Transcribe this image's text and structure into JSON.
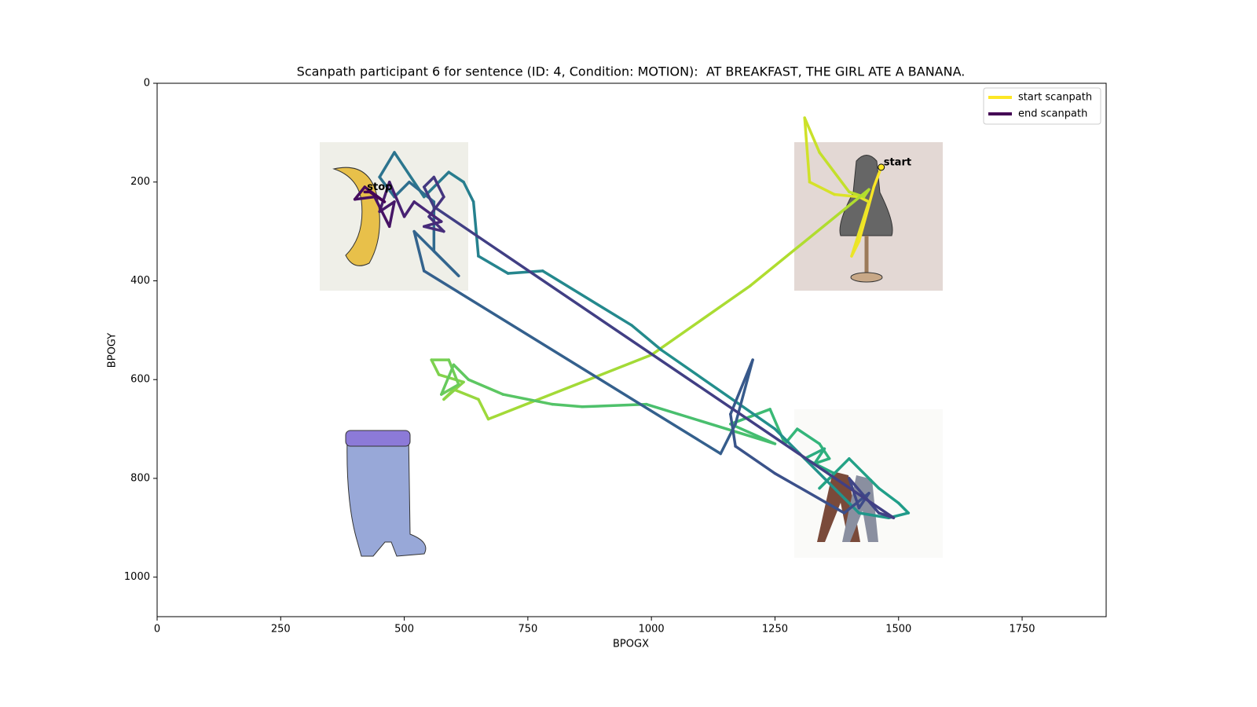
{
  "chart_data": {
    "type": "line",
    "title": "Scanpath participant 6 for sentence (ID: 4, Condition: MOTION):  AT BREAKFAST, THE GIRL ATE A BANANA.",
    "x_label": "BPOGX",
    "y_label": "BPOGY",
    "xlim": [
      0,
      1920
    ],
    "ylim": [
      1080,
      0
    ],
    "xticks": [
      0,
      250,
      500,
      750,
      1000,
      1250,
      1500,
      1750
    ],
    "yticks": [
      0,
      200,
      400,
      600,
      800,
      1000
    ],
    "colormap": "viridis_r",
    "legend": [
      {
        "name": "start scanpath",
        "color": "#fde725"
      },
      {
        "name": "end scanpath",
        "color": "#440154"
      }
    ],
    "annotations": [
      {
        "text": "start",
        "x": 1465,
        "y": 170
      },
      {
        "text": "stop",
        "x": 420,
        "y": 220
      }
    ],
    "series": [
      {
        "x": [
          1465,
          1450,
          1420,
          1405,
          1440,
          1420,
          1370,
          1320,
          1310,
          1340,
          1400,
          1430,
          1440,
          1200,
          1000,
          670,
          650,
          600,
          580,
          620,
          570,
          555,
          590,
          610,
          575,
          600,
          630,
          700,
          800,
          860,
          990,
          1250,
          1160,
          1240,
          1270,
          1295,
          1340,
          1360,
          1330,
          1350,
          1310,
          1370,
          1340,
          1360,
          1400,
          1460,
          1500,
          1520,
          1480,
          1420,
          1390,
          1300,
          1250,
          1020,
          960,
          780,
          710,
          650,
          640,
          620,
          590,
          540,
          500,
          480,
          450,
          480,
          510,
          560,
          560,
          610,
          520,
          540,
          1140,
          1170,
          1205,
          1160,
          1170,
          1250,
          1390,
          1440,
          1420,
          1400,
          1460,
          1490,
          560,
          540,
          560,
          580,
          550,
          580,
          540,
          575,
          520,
          500,
          470,
          450,
          480,
          470,
          440,
          400,
          420,
          460,
          430,
          420
        ],
        "values": [
          170,
          210,
          320,
          350,
          240,
          230,
          225,
          200,
          70,
          140,
          220,
          230,
          215,
          410,
          550,
          680,
          640,
          620,
          640,
          605,
          590,
          560,
          560,
          610,
          630,
          570,
          600,
          630,
          650,
          655,
          650,
          730,
          690,
          660,
          730,
          700,
          730,
          760,
          770,
          740,
          760,
          790,
          820,
          800,
          760,
          820,
          850,
          870,
          880,
          870,
          840,
          750,
          700,
          540,
          490,
          380,
          385,
          350,
          240,
          200,
          180,
          230,
          170,
          140,
          190,
          230,
          200,
          240,
          340,
          390,
          300,
          380,
          750,
          690,
          560,
          670,
          735,
          790,
          870,
          830,
          860,
          800,
          870,
          880,
          250,
          210,
          190,
          230,
          270,
          300,
          290,
          280,
          240,
          270,
          200,
          260,
          240,
          290,
          230,
          235,
          210,
          240,
          220,
          220
        ]
      }
    ]
  }
}
